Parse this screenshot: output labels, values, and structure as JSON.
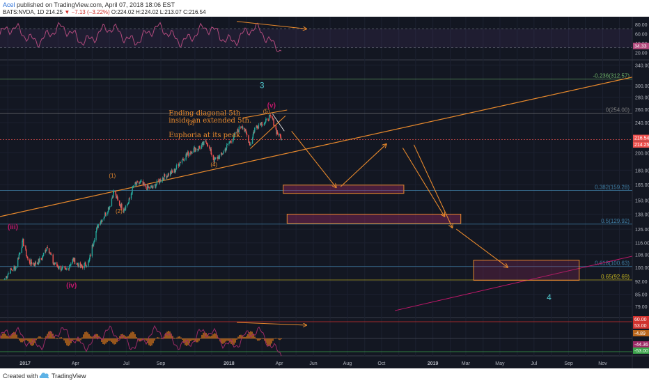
{
  "header": {
    "author": "Acel",
    "published_text": "published on TradingView.com, April 07, 2018 18:06 EST",
    "symbol": "BATS:NVDA, 1D",
    "last": "214.25",
    "change": "−7.13 (−3.22%)",
    "ohlc": "O:224.02 H:224.02 L:213.07 C:216.54"
  },
  "footer": {
    "created_with": "Created with",
    "brand": "TradingView"
  },
  "colors": {
    "background": "#131722",
    "up_candle": "#26a69a",
    "down_candle": "#ef5350",
    "orange": "#e8892c",
    "magenta": "#c2186b",
    "teal_label": "#4fc3c9",
    "yellow_line": "#c9b820",
    "rsi_line": "#b24a7d",
    "macd_hist": "#b8661c"
  },
  "chart_data": [
    {
      "type": "candlestick",
      "title": "",
      "xaxis_labels": [
        "2017",
        "Apr",
        "Jul",
        "Sep",
        "2018",
        "Apr",
        "Jun",
        "Aug",
        "Oct",
        "2019",
        "Mar",
        "May",
        "Jul",
        "Sep",
        "Nov"
      ],
      "ylim": [
        72,
        342
      ],
      "scale": "log",
      "y_ticks": [
        "340.00",
        "300.00",
        "280.00",
        "260.00",
        "240.00",
        "200.00",
        "180.00",
        "165.00",
        "150.00",
        "138.00",
        "126.00",
        "116.00",
        "108.00",
        "100.00",
        "92.00",
        "85.00",
        "79.00"
      ],
      "price_labels": [
        {
          "text": "216.54",
          "value": 216.54,
          "color": "#ef5350"
        },
        {
          "text": "214.25",
          "value": 214.25,
          "color": "#ef5350"
        }
      ],
      "price_series": {
        "description": "approximate daily closes, Nov 2016 to Apr 2018",
        "points": [
          [
            "2016-11-25",
            93
          ],
          [
            "2016-12-05",
            98
          ],
          [
            "2016-12-15",
            100
          ],
          [
            "2016-12-28",
            117
          ],
          [
            "2017-01-06",
            104
          ],
          [
            "2017-01-18",
            102
          ],
          [
            "2017-01-30",
            105
          ],
          [
            "2017-02-10",
            114
          ],
          [
            "2017-02-20",
            103
          ],
          [
            "2017-03-03",
            100
          ],
          [
            "2017-03-15",
            98
          ],
          [
            "2017-03-28",
            105
          ],
          [
            "2017-04-10",
            100
          ],
          [
            "2017-04-25",
            103
          ],
          [
            "2017-05-05",
            120
          ],
          [
            "2017-05-12",
            130
          ],
          [
            "2017-05-22",
            136
          ],
          [
            "2017-06-01",
            145
          ],
          [
            "2017-06-09",
            159
          ],
          [
            "2017-06-16",
            149
          ],
          [
            "2017-06-26",
            142
          ],
          [
            "2017-07-05",
            148
          ],
          [
            "2017-07-14",
            164
          ],
          [
            "2017-07-26",
            167
          ],
          [
            "2017-08-07",
            162
          ],
          [
            "2017-08-18",
            162
          ],
          [
            "2017-08-31",
            170
          ],
          [
            "2017-09-12",
            175
          ],
          [
            "2017-09-25",
            179
          ],
          [
            "2017-10-06",
            190
          ],
          [
            "2017-10-18",
            198
          ],
          [
            "2017-10-27",
            203
          ],
          [
            "2017-11-10",
            207
          ],
          [
            "2017-11-22",
            214
          ],
          [
            "2017-12-05",
            191
          ],
          [
            "2017-12-18",
            197
          ],
          [
            "2018-01-03",
            214
          ],
          [
            "2018-01-12",
            223
          ],
          [
            "2018-01-24",
            237
          ],
          [
            "2018-02-02",
            222
          ],
          [
            "2018-02-08",
            210
          ],
          [
            "2018-02-16",
            232
          ],
          [
            "2018-02-27",
            240
          ],
          [
            "2018-03-07",
            240
          ],
          [
            "2018-03-13",
            248
          ],
          [
            "2018-03-20",
            245
          ],
          [
            "2018-03-27",
            227
          ],
          [
            "2018-04-02",
            221
          ],
          [
            "2018-04-06",
            216.54
          ]
        ]
      }
    },
    {
      "type": "line",
      "panel": "rsi-panel",
      "y_ticks": [
        "80.00",
        "60.00",
        "40.00",
        "20.00"
      ],
      "value_label": "34.33",
      "description": "RSI oscillator, approximately 34 at the last bar"
    },
    {
      "type": "bar",
      "panel": "macd-panel",
      "y_labels": [
        "60.00",
        "53.00",
        "-4.89",
        "-44.36",
        "-53.00"
      ],
      "description": "momentum oscillator with orange histogram, last value -44.36"
    }
  ],
  "annotations": {
    "wave_labels": {
      "w3": "3",
      "w4": "4",
      "iii": "(iii)",
      "iv": "(iv)",
      "v": "(v)",
      "s1": "(1)",
      "s2": "(2)",
      "s3": "(3)",
      "s4": "(4)",
      "s5": "(5)"
    },
    "note_lines": [
      "Ending diagonal 5th",
      "inside an extended 5th.",
      "Euphoria at its peak."
    ],
    "fib_levels": [
      {
        "label": "-0.236(312.57)",
        "value": 312.57,
        "color": "#6fb56a"
      },
      {
        "label": "0(254.00)",
        "value": 254.0,
        "color": "#7d7d7d"
      },
      {
        "label": "0.382(159.28)",
        "value": 159.28,
        "color": "#3f7ea4"
      },
      {
        "label": "0.5(129.92)",
        "value": 129.92,
        "color": "#3f7ea4"
      },
      {
        "label": "0.618(100.63)",
        "value": 100.63,
        "color": "#3f7ea4"
      },
      {
        "label": "0.65(92.69)",
        "value": 92.69,
        "color": "#c9b820"
      }
    ]
  }
}
